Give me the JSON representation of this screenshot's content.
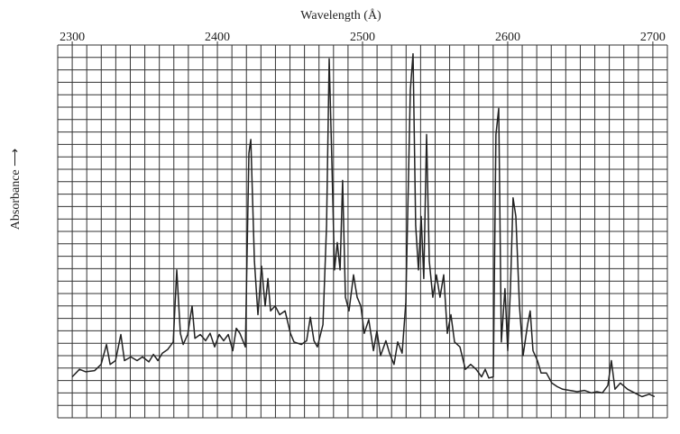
{
  "chart_data": {
    "type": "line",
    "xlabel": "Wavelength (Å)",
    "ylabel": "Absorbance ⟶",
    "xlim": [
      2290,
      2710
    ],
    "xticks": [
      2300,
      2400,
      2500,
      2600,
      2700
    ],
    "ylim": [
      0,
      30
    ],
    "grid": true,
    "series": [
      {
        "color": "#222222",
        "x": [
          2300,
          2305,
          2309.3,
          2315.5,
          2319.9,
          2323.6,
          2326.1,
          2329.8,
          2333.5,
          2336,
          2340.4,
          2344.7,
          2348.4,
          2352.8,
          2355.9,
          2359,
          2362.1,
          2365.8,
          2369.6,
          2372,
          2374.5,
          2376.4,
          2379.5,
          2382.6,
          2384.5,
          2388.2,
          2391.9,
          2395,
          2398.1,
          2401.2,
          2404.3,
          2407.5,
          2410.6,
          2413,
          2415.5,
          2419.3,
          2421.7,
          2423,
          2425.5,
          2427.9,
          2430.4,
          2432.9,
          2434.8,
          2436.6,
          2439.8,
          2442.9,
          2446.6,
          2450.3,
          2452.8,
          2457.8,
          2461.5,
          2464,
          2466.5,
          2468.9,
          2472.7,
          2475.2,
          2477,
          2478.9,
          2480.7,
          2482.6,
          2484.5,
          2486.3,
          2488.2,
          2490.7,
          2493.8,
          2496.3,
          2498.8,
          2501.2,
          2504.3,
          2507.5,
          2509.9,
          2512.4,
          2516.1,
          2518.6,
          2521.7,
          2524.2,
          2527.3,
          2529.8,
          2532.9,
          2534.8,
          2536.6,
          2538.5,
          2540.4,
          2542.2,
          2544.1,
          2546,
          2548.4,
          2550.9,
          2553.4,
          2555.9,
          2558.4,
          2560.9,
          2563.4,
          2567.1,
          2570.8,
          2574.5,
          2578.3,
          2582,
          2584.5,
          2587,
          2590.1,
          2591.9,
          2593.8,
          2595.6,
          2598.1,
          2600,
          2601.9,
          2603.7,
          2605.6,
          2608.1,
          2610.6,
          2613.7,
          2615.5,
          2617.4,
          2620.5,
          2623,
          2626.7,
          2630.4,
          2634.2,
          2637.9,
          2642.9,
          2647.8,
          2652.8,
          2657.8,
          2661.5,
          2665.2,
          2669,
          2671.4,
          2673.9,
          2677.6,
          2682.6,
          2687.6,
          2692.5,
          2697.5,
          2701.2
        ],
        "values": [
          3.3,
          3.9,
          3.7,
          3.8,
          4.3,
          5.9,
          4.3,
          4.6,
          6.7,
          4.6,
          4.9,
          4.6,
          4.9,
          4.5,
          5.1,
          4.6,
          5.2,
          5.5,
          6.1,
          11.9,
          6.8,
          5.9,
          6.7,
          9.0,
          6.4,
          6.7,
          6.2,
          6.8,
          5.7,
          6.7,
          6.2,
          6.7,
          5.4,
          7.2,
          6.8,
          5.7,
          21.3,
          22.4,
          12.6,
          8.3,
          12.2,
          9.0,
          11.2,
          8.6,
          9.0,
          8.3,
          8.6,
          6.8,
          6.1,
          5.9,
          6.2,
          8.1,
          6.2,
          5.7,
          7.5,
          15.5,
          28.9,
          20.6,
          11.9,
          14.1,
          11.9,
          19.1,
          9.7,
          8.6,
          11.5,
          9.7,
          9.0,
          6.8,
          7.9,
          5.4,
          7.0,
          5.0,
          6.2,
          5.2,
          4.3,
          6.1,
          5.2,
          9.3,
          26.4,
          29.3,
          15.5,
          11.9,
          16.2,
          11.2,
          22.8,
          12.6,
          9.7,
          11.5,
          9.7,
          11.5,
          6.8,
          8.3,
          6.1,
          5.7,
          3.9,
          4.3,
          3.9,
          3.3,
          3.9,
          3.2,
          3.3,
          22.8,
          24.9,
          6.1,
          10.4,
          5.4,
          10.4,
          17.7,
          16.2,
          9.0,
          5.0,
          7.5,
          8.6,
          5.4,
          4.6,
          3.6,
          3.6,
          2.8,
          2.5,
          2.3,
          2.2,
          2.1,
          2.2,
          2.0,
          2.1,
          2.0,
          2.6,
          4.6,
          2.3,
          2.8,
          2.3,
          2.0,
          1.7,
          1.9,
          1.7
        ]
      }
    ]
  }
}
